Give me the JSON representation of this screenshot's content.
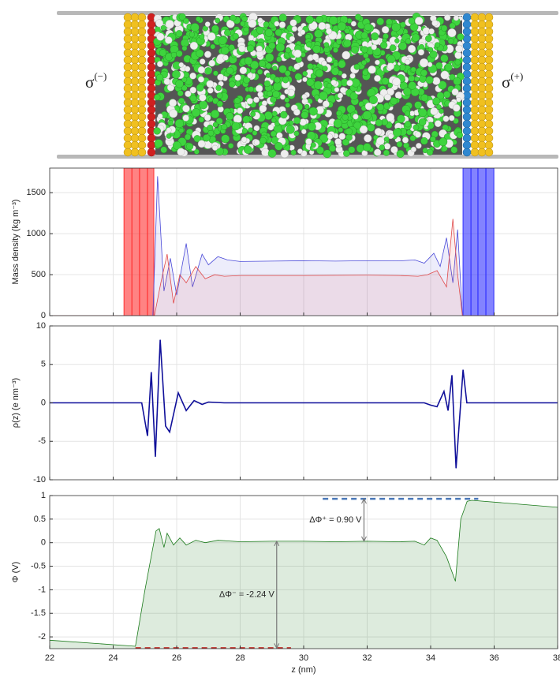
{
  "illustration": {
    "left_label": {
      "symbol": "σ",
      "superscript": "(−)"
    },
    "right_label": {
      "symbol": "σ",
      "superscript": "(+)"
    }
  },
  "chart_data": [
    {
      "type": "area",
      "ylabel": "Mass density (kg m⁻³)",
      "xlim": [
        22,
        38
      ],
      "xticks": [
        22,
        24,
        26,
        28,
        30,
        32,
        34,
        36,
        38
      ],
      "xtick_labels": false,
      "ylim": [
        0,
        1800
      ],
      "yticks": [
        0,
        500,
        1000,
        1500
      ],
      "grid": true,
      "fill_opacity": 0.1,
      "bands": [
        {
          "x0": 24.34,
          "x1": 25.28,
          "lines": [
            24.59,
            24.83,
            25.08
          ],
          "color": "#ff3030"
        },
        {
          "x0": 35.02,
          "x1": 35.99,
          "lines": [
            35.27,
            35.49,
            35.74
          ],
          "color": "#3030ff"
        }
      ],
      "series": [
        {
          "color": "#4a4ad8",
          "x": [
            22,
            25.25,
            25.4,
            25.6,
            25.8,
            26.0,
            26.3,
            26.5,
            26.8,
            27.0,
            27.3,
            27.6,
            28,
            29,
            30,
            31,
            32,
            33,
            33.5,
            33.8,
            34.1,
            34.3,
            34.5,
            34.7,
            34.85,
            35.0,
            38
          ],
          "values": [
            0,
            0,
            1700,
            300,
            700,
            250,
            880,
            350,
            750,
            620,
            720,
            680,
            660,
            665,
            670,
            665,
            670,
            668,
            680,
            640,
            760,
            600,
            950,
            400,
            1050,
            0,
            0
          ]
        },
        {
          "color": "#e04848",
          "x": [
            22,
            25.3,
            25.5,
            25.7,
            25.9,
            26.1,
            26.3,
            26.6,
            26.9,
            27.2,
            27.5,
            28,
            30,
            32,
            33,
            33.6,
            33.9,
            34.2,
            34.5,
            34.7,
            34.85,
            35.0,
            38
          ],
          "values": [
            0,
            0,
            400,
            750,
            150,
            500,
            400,
            600,
            450,
            500,
            480,
            490,
            490,
            495,
            490,
            480,
            500,
            550,
            350,
            1180,
            500,
            0,
            0
          ]
        }
      ]
    },
    {
      "type": "line",
      "ylabel": "ρ(z) (e nm⁻³)",
      "xlim": [
        22,
        38
      ],
      "xticks": [
        22,
        24,
        26,
        28,
        30,
        32,
        34,
        36,
        38
      ],
      "xtick_labels": false,
      "ylim": [
        -10,
        10
      ],
      "yticks": [
        -10,
        -5,
        0,
        5,
        10
      ],
      "grid": true,
      "series": [
        {
          "color": "#10109a",
          "x": [
            22,
            24.9,
            25.08,
            25.2,
            25.33,
            25.48,
            25.65,
            25.78,
            26.05,
            26.3,
            26.55,
            26.8,
            27,
            27.5,
            33.8,
            34.0,
            34.2,
            34.42,
            34.55,
            34.67,
            34.8,
            35.02,
            35.14,
            38
          ],
          "values": [
            0,
            0,
            -4.3,
            4,
            -7,
            8.2,
            -3,
            -3.8,
            1.3,
            -1,
            0.3,
            -0.2,
            0.1,
            0,
            0,
            -0.3,
            -0.5,
            1.5,
            -1,
            3.6,
            -8.5,
            4.3,
            0,
            0
          ]
        }
      ]
    },
    {
      "type": "area",
      "ylabel": "Φ (V)",
      "xlabel": "z (nm)",
      "xlim": [
        22,
        38
      ],
      "xticks": [
        22,
        24,
        26,
        28,
        30,
        32,
        34,
        36,
        38
      ],
      "xtick_labels": true,
      "ylim": [
        -2.25,
        1
      ],
      "yticks": [
        -2,
        -1.5,
        -1,
        -0.5,
        0,
        0.5,
        1
      ],
      "grid": true,
      "fill_opacity": 0.15,
      "series": [
        {
          "color": "#1a7a1a",
          "x": [
            22,
            24.7,
            25.0,
            25.35,
            25.45,
            25.6,
            25.7,
            25.9,
            26.1,
            26.3,
            26.6,
            26.9,
            27.3,
            28,
            29,
            30,
            31,
            32,
            33,
            33.5,
            33.8,
            34.0,
            34.2,
            34.5,
            34.78,
            34.95,
            35.15,
            35.3,
            38
          ],
          "values": [
            -2.07,
            -2.2,
            -1.0,
            0.25,
            0.3,
            -0.1,
            0.2,
            -0.05,
            0.1,
            -0.05,
            0.05,
            0,
            0.05,
            0.02,
            0.03,
            0.03,
            0.02,
            0.03,
            0.02,
            0.03,
            -0.05,
            0.1,
            0.05,
            -0.3,
            -0.82,
            0.5,
            0.88,
            0.9,
            0.75
          ]
        }
      ],
      "reference_lines": [
        {
          "y": -2.24,
          "x0": 24.7,
          "x1": 29.6,
          "color": "#c0302a"
        },
        {
          "y": 0.93,
          "x0": 30.6,
          "x1": 35.5,
          "color": "#4a78b8"
        }
      ],
      "annotations": [
        {
          "text": "ΔΦ⁺ = 0.90 V",
          "x": 31.9,
          "y_from": 0.93,
          "y_to": 0.03
        },
        {
          "text": "ΔΦ⁻ = -2.24 V",
          "x": 29.15,
          "y_from": 0.03,
          "y_to": -2.24
        }
      ]
    }
  ]
}
